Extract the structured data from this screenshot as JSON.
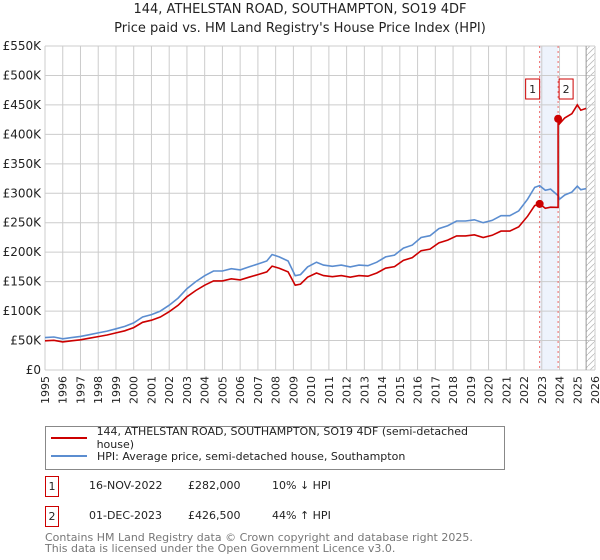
{
  "chart_data": {
    "type": "line",
    "title": "144, ATHELSTAN ROAD, SOUTHAMPTON, SO19 4DF",
    "subtitle": "Price paid vs. HM Land Registry's House Price Index (HPI)",
    "xlim": [
      1995,
      2026
    ],
    "ylim": [
      0,
      550000
    ],
    "yticks": [
      0,
      50000,
      100000,
      150000,
      200000,
      250000,
      300000,
      350000,
      400000,
      450000,
      500000,
      550000
    ],
    "ytick_labels": [
      "£0",
      "£50K",
      "£100K",
      "£150K",
      "£200K",
      "£250K",
      "£300K",
      "£350K",
      "£400K",
      "£450K",
      "£500K",
      "£550K"
    ],
    "xticks": [
      1995,
      1996,
      1997,
      1998,
      1999,
      2000,
      2001,
      2002,
      2003,
      2004,
      2005,
      2006,
      2007,
      2008,
      2009,
      2010,
      2011,
      2012,
      2013,
      2014,
      2015,
      2016,
      2017,
      2018,
      2019,
      2020,
      2021,
      2022,
      2023,
      2024,
      2025,
      2026
    ],
    "grid": true,
    "future_hatch_from": 2025.5,
    "shaded_range": [
      2022.88,
      2023.92
    ],
    "series": [
      {
        "name": "144, ATHELSTAN ROAD, SOUTHAMPTON, SO19 4DF (semi-detached house)",
        "color": "#cc0000",
        "x": [
          1995,
          1995.5,
          1996,
          1996.5,
          1997,
          1997.5,
          1998,
          1998.5,
          1999,
          1999.5,
          2000,
          2000.5,
          2001,
          2001.5,
          2002,
          2002.5,
          2003,
          2003.5,
          2004,
          2004.5,
          2005,
          2005.5,
          2006,
          2006.5,
          2007,
          2007.5,
          2007.8,
          2008.2,
          2008.7,
          2009.1,
          2009.4,
          2009.8,
          2010.3,
          2010.7,
          2011.2,
          2011.7,
          2012.2,
          2012.7,
          2013.2,
          2013.7,
          2014.2,
          2014.7,
          2015.2,
          2015.7,
          2016.2,
          2016.7,
          2017.2,
          2017.7,
          2018.2,
          2018.7,
          2019.2,
          2019.7,
          2020.2,
          2020.7,
          2021.2,
          2021.7,
          2022.2,
          2022.6,
          2022.88,
          2023.2,
          2023.5,
          2023.92,
          2023.92,
          2024.0,
          2024.3,
          2024.7,
          2025.0,
          2025.2,
          2025.5
        ],
        "y": [
          49500,
          50400,
          47700,
          49500,
          51300,
          54000,
          56700,
          59400,
          63000,
          66600,
          72000,
          81000,
          84600,
          90000,
          99000,
          109800,
          124200,
          135000,
          144000,
          151200,
          151200,
          154800,
          153000,
          157500,
          162000,
          166500,
          176400,
          172800,
          166500,
          144000,
          145800,
          157500,
          164700,
          160200,
          158400,
          160200,
          157500,
          160200,
          159300,
          164700,
          172800,
          175500,
          186300,
          190800,
          202500,
          205200,
          216000,
          220500,
          227700,
          227700,
          229500,
          225000,
          228600,
          235800,
          235800,
          243000,
          261000,
          279000,
          282000,
          274500,
          276300,
          276000,
          426500,
          418000,
          428000,
          435000,
          450000,
          441000,
          444000
        ]
      },
      {
        "name": "HPI: Average price, semi-detached house, Southampton",
        "color": "#5b8dd0",
        "x": [
          1995,
          1995.5,
          1996,
          1996.5,
          1997,
          1997.5,
          1998,
          1998.5,
          1999,
          1999.5,
          2000,
          2000.5,
          2001,
          2001.5,
          2002,
          2002.5,
          2003,
          2003.5,
          2004,
          2004.5,
          2005,
          2005.5,
          2006,
          2006.5,
          2007,
          2007.5,
          2007.8,
          2008.2,
          2008.7,
          2009.1,
          2009.4,
          2009.8,
          2010.3,
          2010.7,
          2011.2,
          2011.7,
          2012.2,
          2012.7,
          2013.2,
          2013.7,
          2014.2,
          2014.7,
          2015.2,
          2015.7,
          2016.2,
          2016.7,
          2017.2,
          2017.7,
          2018.2,
          2018.7,
          2019.2,
          2019.7,
          2020.2,
          2020.7,
          2021.2,
          2021.7,
          2022.2,
          2022.6,
          2022.88,
          2023.2,
          2023.5,
          2023.92,
          2024.0,
          2024.3,
          2024.7,
          2025.0,
          2025.2,
          2025.5
        ],
        "y": [
          55000,
          56000,
          53000,
          55000,
          57000,
          60000,
          63000,
          66000,
          70000,
          74000,
          80000,
          90000,
          94000,
          100000,
          110000,
          122000,
          138000,
          150000,
          160000,
          168000,
          168000,
          172000,
          170000,
          175000,
          180000,
          185000,
          196000,
          192000,
          185000,
          160000,
          162000,
          175000,
          183000,
          178000,
          176000,
          178000,
          175000,
          178000,
          177000,
          183000,
          192000,
          195000,
          207000,
          212000,
          225000,
          228000,
          240000,
          245000,
          253000,
          253000,
          255000,
          250000,
          254000,
          262000,
          262000,
          270000,
          290000,
          310000,
          313000,
          305000,
          307000,
          296000,
          290000,
          297000,
          302000,
          312000,
          306000,
          308000
        ]
      }
    ],
    "sales": [
      {
        "label": "1",
        "x": 2022.88,
        "y": 282000,
        "date": "16-NOV-2022",
        "price": "£282,000",
        "hpi": "10% ↓ HPI"
      },
      {
        "label": "2",
        "x": 2023.92,
        "y": 426500,
        "date": "01-DEC-2023",
        "price": "£426,500",
        "hpi": "44% ↑ HPI"
      }
    ]
  },
  "footer": {
    "line1": "Contains HM Land Registry data © Crown copyright and database right 2025.",
    "line2": "This data is licensed under the Open Government Licence v3.0."
  }
}
